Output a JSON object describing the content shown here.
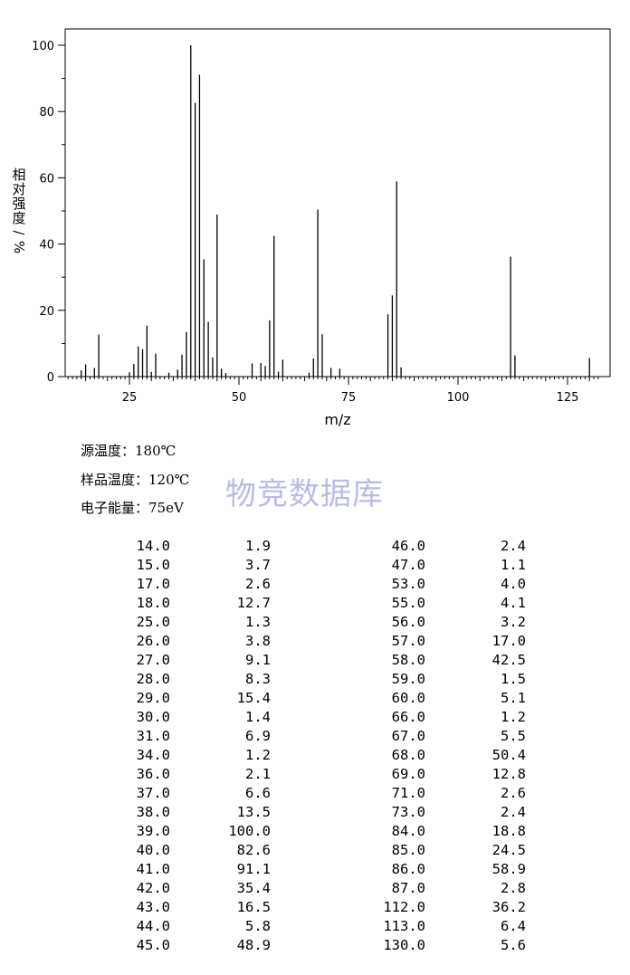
{
  "chart_data": {
    "type": "bar",
    "ylabel_chars": [
      "相",
      "对",
      "强",
      "度",
      "/",
      "%"
    ],
    "xlabel": "m/z",
    "xlim": [
      10,
      132
    ],
    "ylim": [
      0,
      100
    ],
    "xticks": [
      25,
      50,
      75,
      100,
      125
    ],
    "yticks": [
      0,
      20,
      40,
      60,
      80,
      100
    ],
    "x": [
      14,
      15,
      17,
      18,
      25,
      26,
      27,
      28,
      29,
      30,
      31,
      34,
      36,
      37,
      38,
      39,
      40,
      41,
      42,
      43,
      44,
      45,
      46,
      47,
      53,
      55,
      56,
      57,
      58,
      59,
      60,
      66,
      67,
      68,
      69,
      71,
      73,
      84,
      85,
      86,
      87,
      112,
      113,
      130
    ],
    "values": [
      1.9,
      3.7,
      2.6,
      12.7,
      1.3,
      3.8,
      9.1,
      8.3,
      15.4,
      1.4,
      6.9,
      1.2,
      2.1,
      6.6,
      13.5,
      100.0,
      82.6,
      91.1,
      35.4,
      16.5,
      5.8,
      48.9,
      2.4,
      1.1,
      4.0,
      4.1,
      3.2,
      17.0,
      42.5,
      1.5,
      5.1,
      1.2,
      5.5,
      50.4,
      12.8,
      2.6,
      2.4,
      18.8,
      24.5,
      58.9,
      2.8,
      36.2,
      6.4,
      5.6
    ]
  },
  "info": {
    "source_temp": "源温度：180℃",
    "sample_temp": "样品温度：120℃",
    "electron_energy": "电子能量：75eV"
  },
  "watermark": "物竞数据库",
  "table": {
    "left": [
      [
        "14.0",
        "1.9"
      ],
      [
        "15.0",
        "3.7"
      ],
      [
        "17.0",
        "2.6"
      ],
      [
        "18.0",
        "12.7"
      ],
      [
        "25.0",
        "1.3"
      ],
      [
        "26.0",
        "3.8"
      ],
      [
        "27.0",
        "9.1"
      ],
      [
        "28.0",
        "8.3"
      ],
      [
        "29.0",
        "15.4"
      ],
      [
        "30.0",
        "1.4"
      ],
      [
        "31.0",
        "6.9"
      ],
      [
        "34.0",
        "1.2"
      ],
      [
        "36.0",
        "2.1"
      ],
      [
        "37.0",
        "6.6"
      ],
      [
        "38.0",
        "13.5"
      ],
      [
        "39.0",
        "100.0"
      ],
      [
        "40.0",
        "82.6"
      ],
      [
        "41.0",
        "91.1"
      ],
      [
        "42.0",
        "35.4"
      ],
      [
        "43.0",
        "16.5"
      ],
      [
        "44.0",
        "5.8"
      ],
      [
        "45.0",
        "48.9"
      ]
    ],
    "right": [
      [
        "46.0",
        "2.4"
      ],
      [
        "47.0",
        "1.1"
      ],
      [
        "53.0",
        "4.0"
      ],
      [
        "55.0",
        "4.1"
      ],
      [
        "56.0",
        "3.2"
      ],
      [
        "57.0",
        "17.0"
      ],
      [
        "58.0",
        "42.5"
      ],
      [
        "59.0",
        "1.5"
      ],
      [
        "60.0",
        "5.1"
      ],
      [
        "66.0",
        "1.2"
      ],
      [
        "67.0",
        "5.5"
      ],
      [
        "68.0",
        "50.4"
      ],
      [
        "69.0",
        "12.8"
      ],
      [
        "71.0",
        "2.6"
      ],
      [
        "73.0",
        "2.4"
      ],
      [
        "84.0",
        "18.8"
      ],
      [
        "85.0",
        "24.5"
      ],
      [
        "86.0",
        "58.9"
      ],
      [
        "87.0",
        "2.8"
      ],
      [
        "112.0",
        "36.2"
      ],
      [
        "113.0",
        "6.4"
      ],
      [
        "130.0",
        "5.6"
      ]
    ]
  }
}
